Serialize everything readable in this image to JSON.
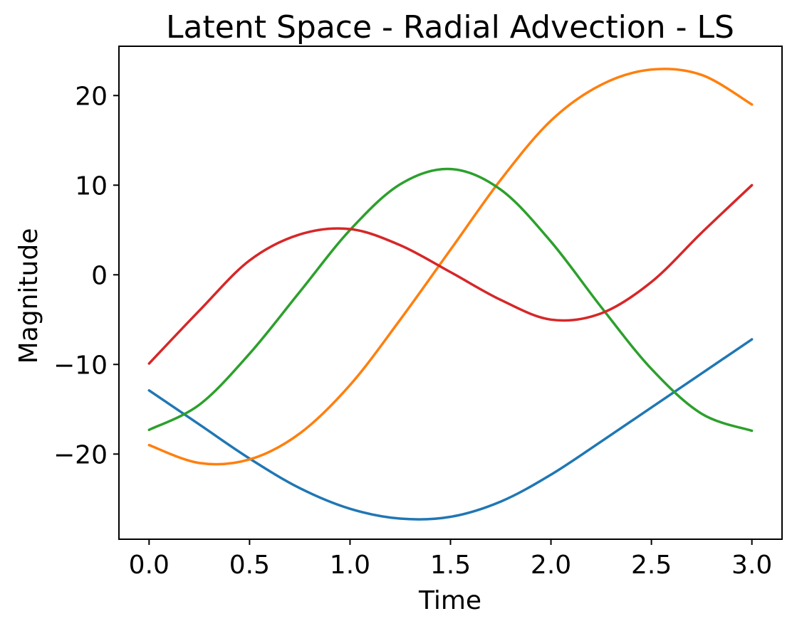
{
  "chart_data": {
    "type": "line",
    "title": "Latent Space - Radial Advection - LS",
    "xlabel": "Time",
    "ylabel": "Magnitude",
    "xlim": [
      -0.15,
      3.15
    ],
    "ylim": [
      -29.5,
      25.5
    ],
    "grid": false,
    "xticks": [
      0.0,
      0.5,
      1.0,
      1.5,
      2.0,
      2.5,
      3.0
    ],
    "xtick_labels": [
      "0.0",
      "0.5",
      "1.0",
      "1.5",
      "2.0",
      "2.5",
      "3.0"
    ],
    "yticks": [
      -20,
      -10,
      0,
      10,
      20
    ],
    "ytick_labels": [
      "−20",
      "−10",
      "0",
      "10",
      "20"
    ],
    "x": [
      0.0,
      0.25,
      0.5,
      0.75,
      1.0,
      1.25,
      1.5,
      1.75,
      2.0,
      2.25,
      2.5,
      2.75,
      3.0
    ],
    "series": [
      {
        "color": "#1f77b4",
        "values": [
          -12.9,
          -16.7,
          -20.5,
          -23.8,
          -26.1,
          -27.2,
          -27.0,
          -25.3,
          -22.3,
          -18.6,
          -14.8,
          -11.0,
          -7.2
        ]
      },
      {
        "color": "#ff7f0e",
        "values": [
          -19.0,
          -21.0,
          -20.6,
          -17.7,
          -12.3,
          -5.0,
          2.8,
          10.6,
          17.2,
          21.2,
          22.9,
          22.3,
          19.0
        ]
      },
      {
        "color": "#2ca02c",
        "values": [
          -17.3,
          -14.5,
          -8.8,
          -1.9,
          5.0,
          10.1,
          11.8,
          9.5,
          3.7,
          -3.6,
          -10.5,
          -15.5,
          -17.4
        ]
      },
      {
        "color": "#d62728",
        "values": [
          -9.9,
          -4.0,
          1.6,
          4.5,
          5.1,
          3.3,
          0.3,
          -2.8,
          -5.0,
          -4.3,
          -0.8,
          4.7,
          10.0
        ]
      }
    ]
  }
}
